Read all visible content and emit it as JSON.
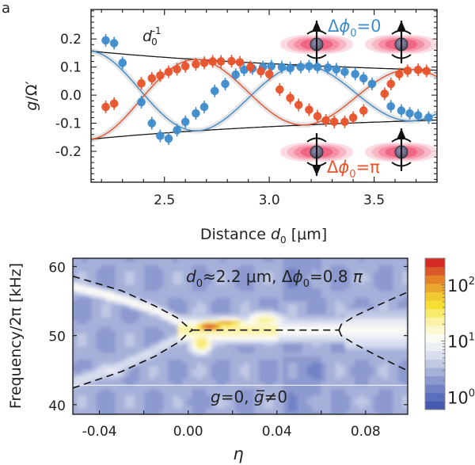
{
  "panel_label": "a",
  "chart_data": [
    {
      "type": "scatter",
      "title": "",
      "xlabel": "Distance d0 [μm]",
      "xlabel_parts": {
        "main": "Distance ",
        "var": "d",
        "sub": "0",
        "unit": " [μm]"
      },
      "ylabel": "g/Ω′",
      "ylabel_parts": {
        "var": "g",
        "rest": "/Ω′"
      },
      "xlim": [
        2.15,
        3.8
      ],
      "ylim": [
        -0.31,
        0.305
      ],
      "xticks": [
        2.5,
        3.0,
        3.5
      ],
      "xtick_labels": [
        "2.5",
        "3.0",
        "3.5"
      ],
      "xminor_step": 0.1,
      "yticks": [
        0.2,
        0.1,
        0.0,
        -0.1,
        -0.2
      ],
      "ytick_labels": [
        "0.2",
        "0.1",
        "0.0",
        "-0.1",
        "-0.2"
      ],
      "yminor_step": 0.02,
      "grid": false,
      "annotations": {
        "envelope_label": {
          "var": "d",
          "sub": "0",
          "sup": "-1"
        },
        "phase_zero_label": {
          "prefix": "Δ",
          "var": "ϕ",
          "sub": "0",
          "rest": "=0"
        },
        "phase_pi_label": {
          "prefix": "Δ",
          "var": "ϕ",
          "sub": "0",
          "rest": "=π"
        }
      },
      "colors": {
        "blue": "#3e8ccc",
        "orange": "#e8532b",
        "envelope": "#1a1a1a",
        "band": "#d8d8d8"
      },
      "series": [
        {
          "name": "Δϕ0=0 data",
          "color": "#3e8ccc",
          "x": [
            2.22,
            2.26,
            2.3,
            2.39,
            2.44,
            2.48,
            2.52,
            2.56,
            2.6,
            2.65,
            2.69,
            2.74,
            2.79,
            2.84,
            2.88,
            2.92,
            2.97,
            3.01,
            3.06,
            3.1,
            3.15,
            3.19,
            3.23,
            3.28,
            3.32,
            3.36,
            3.41,
            3.45,
            3.49,
            3.58,
            3.63,
            3.67,
            3.71,
            3.76
          ],
          "y": [
            0.195,
            0.185,
            0.115,
            -0.025,
            -0.1,
            -0.145,
            -0.155,
            -0.125,
            -0.095,
            -0.065,
            -0.042,
            0.015,
            0.04,
            0.073,
            0.09,
            0.095,
            0.1,
            0.103,
            0.1,
            0.096,
            0.1,
            0.103,
            0.1,
            0.098,
            0.092,
            0.083,
            0.075,
            0.06,
            0.04,
            -0.04,
            -0.055,
            -0.065,
            -0.072,
            -0.08
          ]
        },
        {
          "name": "Δϕ0=π data",
          "color": "#e8532b",
          "x": [
            2.22,
            2.26,
            2.39,
            2.44,
            2.48,
            2.52,
            2.56,
            2.6,
            2.65,
            2.69,
            2.73,
            2.77,
            2.82,
            2.86,
            2.91,
            2.96,
            3.0,
            3.05,
            3.1,
            3.14,
            3.19,
            3.23,
            3.27,
            3.31,
            3.36,
            3.4,
            3.45,
            3.55,
            3.58,
            3.62,
            3.66,
            3.71,
            3.75
          ],
          "y": [
            -0.042,
            -0.03,
            0.042,
            0.06,
            0.07,
            0.083,
            0.092,
            0.103,
            0.11,
            0.115,
            0.12,
            0.12,
            0.121,
            0.117,
            0.1,
            0.085,
            0.075,
            0.02,
            -0.01,
            -0.035,
            -0.052,
            -0.075,
            -0.09,
            -0.095,
            -0.095,
            -0.08,
            -0.055,
            0.005,
            0.04,
            0.075,
            0.087,
            0.09,
            0.086
          ]
        }
      ],
      "fits": [
        {
          "name": "Δϕ0=0 fit",
          "color": "#3e8ccc",
          "shape": "damped-cos",
          "phase": 0
        },
        {
          "name": "Δϕ0=π fit",
          "color": "#e8532b",
          "shape": "damped-cos",
          "phase": 3.14159
        }
      ],
      "fit_params": {
        "amp_at_2_15": 0.157,
        "period_um": 1.02,
        "x0_um": 2.15
      },
      "envelope": {
        "name": "d0^-1",
        "formula": "±A/d0",
        "A": 0.337
      }
    },
    {
      "type": "heatmap",
      "title": "d0≈2.2 μm, Δϕ0=0.8 π",
      "title_parts": {
        "var": "d",
        "sub": "0",
        "mid": "≈2.2 μm, Δ",
        "var2": "ϕ",
        "sub2": "0",
        "rest": "=0.8 ",
        "pi": "π"
      },
      "xlabel": "η",
      "ylabel": "Frequency/2π [kHz]",
      "xlim": [
        -0.052,
        0.099
      ],
      "ylim": [
        38.6,
        61.2
      ],
      "xticks": [
        -0.04,
        0.0,
        0.04,
        0.08
      ],
      "xtick_labels": [
        "-0.04",
        "0.00",
        "0.04",
        "0.08"
      ],
      "xminor": [
        -0.02,
        0.02,
        0.06
      ],
      "yticks": [
        60,
        50,
        40
      ],
      "ytick_labels": [
        "60",
        "50",
        "40"
      ],
      "annotation_bottom": {
        "var": "g",
        "rest": "=0, ",
        "var2": "g̅",
        "rest2": "≠0"
      },
      "colorbar": {
        "scale": "log",
        "range": [
          0.6,
          300
        ],
        "ticks": [
          1,
          10,
          100
        ],
        "tick_labels": [
          {
            "base": "10",
            "exp": "0"
          },
          {
            "base": "10",
            "exp": "1"
          },
          {
            "base": "10",
            "exp": "2"
          }
        ],
        "colors": [
          "#4658b0",
          "#5b6dbd",
          "#7282c5",
          "#8c9acf",
          "#a6b1da",
          "#c0c8e4",
          "#d9deef",
          "#eceef6",
          "#fbfbf4",
          "#fdf8cf",
          "#fbf2a5",
          "#f8ea6a",
          "#f5df33",
          "#f0c830",
          "#eaa72d",
          "#e4822a",
          "#dc5828",
          "#d42b27"
        ]
      },
      "ridges": [
        {
          "name": "upper-left branch",
          "points": [
            [
              -0.052,
              58.6
            ],
            [
              -0.03,
              56.5
            ],
            [
              -0.015,
              54.3
            ],
            [
              -0.005,
              52.6
            ],
            [
              0.0,
              51.2
            ],
            [
              0.002,
              50.8
            ]
          ]
        },
        {
          "name": "lower-left branch",
          "points": [
            [
              -0.052,
              42.4
            ],
            [
              -0.03,
              44.8
            ],
            [
              -0.015,
              47.0
            ],
            [
              -0.004,
              49.1
            ],
            [
              0.0,
              50.4
            ],
            [
              0.002,
              50.8
            ]
          ]
        },
        {
          "name": "flat segment",
          "points": [
            [
              0.002,
              50.8
            ],
            [
              0.068,
              50.8
            ]
          ]
        },
        {
          "name": "upper-right branch",
          "points": [
            [
              0.068,
              50.8
            ],
            [
              0.069,
              51.6
            ],
            [
              0.075,
              52.8
            ],
            [
              0.085,
              54.3
            ],
            [
              0.099,
              56.3
            ]
          ]
        },
        {
          "name": "lower-right branch",
          "points": [
            [
              0.068,
              50.8
            ],
            [
              0.069,
              50.0
            ],
            [
              0.075,
              48.8
            ],
            [
              0.085,
              47.1
            ],
            [
              0.099,
              44.9
            ]
          ]
        }
      ],
      "signal_features": [
        {
          "name": "left upper band",
          "path": [
            [
              -0.052,
              57.2
            ],
            [
              -0.03,
              55.4
            ],
            [
              -0.015,
              53.8
            ],
            [
              -0.003,
              52.0
            ]
          ],
          "level": 0.45
        },
        {
          "name": "central peak",
          "center": [
            0.012,
            51.4
          ],
          "level": 1.0
        },
        {
          "name": "flat band",
          "from": [
            0.0,
            51.0
          ],
          "to": [
            0.099,
            50.6
          ],
          "level": 0.5
        }
      ],
      "white_line_kHz": 42.8
    }
  ]
}
